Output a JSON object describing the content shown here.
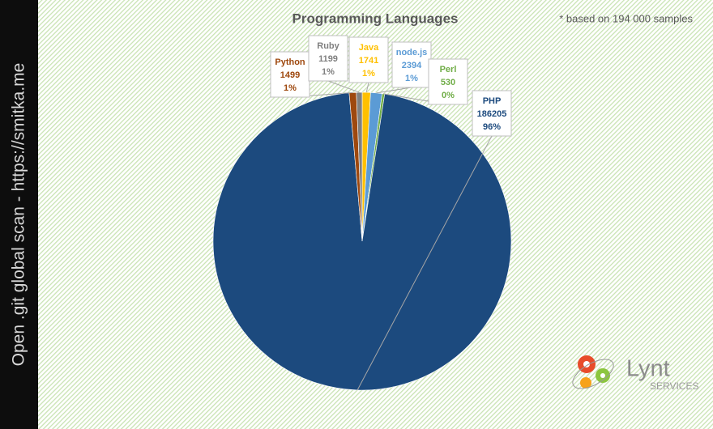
{
  "chart_data": {
    "type": "pie",
    "title": "Programming  Languages",
    "note": "* based on 194 000 samples",
    "categories": [
      "Java",
      "node.js",
      "Perl",
      "PHP",
      "Python",
      "Ruby"
    ],
    "values": [
      1741,
      2394,
      530,
      186205,
      1499,
      1199
    ],
    "percent_labels": [
      "1%",
      "1%",
      "0%",
      "96%",
      "1%",
      "1%"
    ],
    "colors": [
      "#ffc000",
      "#5b9bd5",
      "#70ad47",
      "#1c4a7e",
      "#9e480e",
      "#7f7f7f"
    ]
  },
  "sidebar": "Open .git global scan - https://smitka.me",
  "logo": {
    "name": "Lynt",
    "tagline": "SERVICES"
  }
}
